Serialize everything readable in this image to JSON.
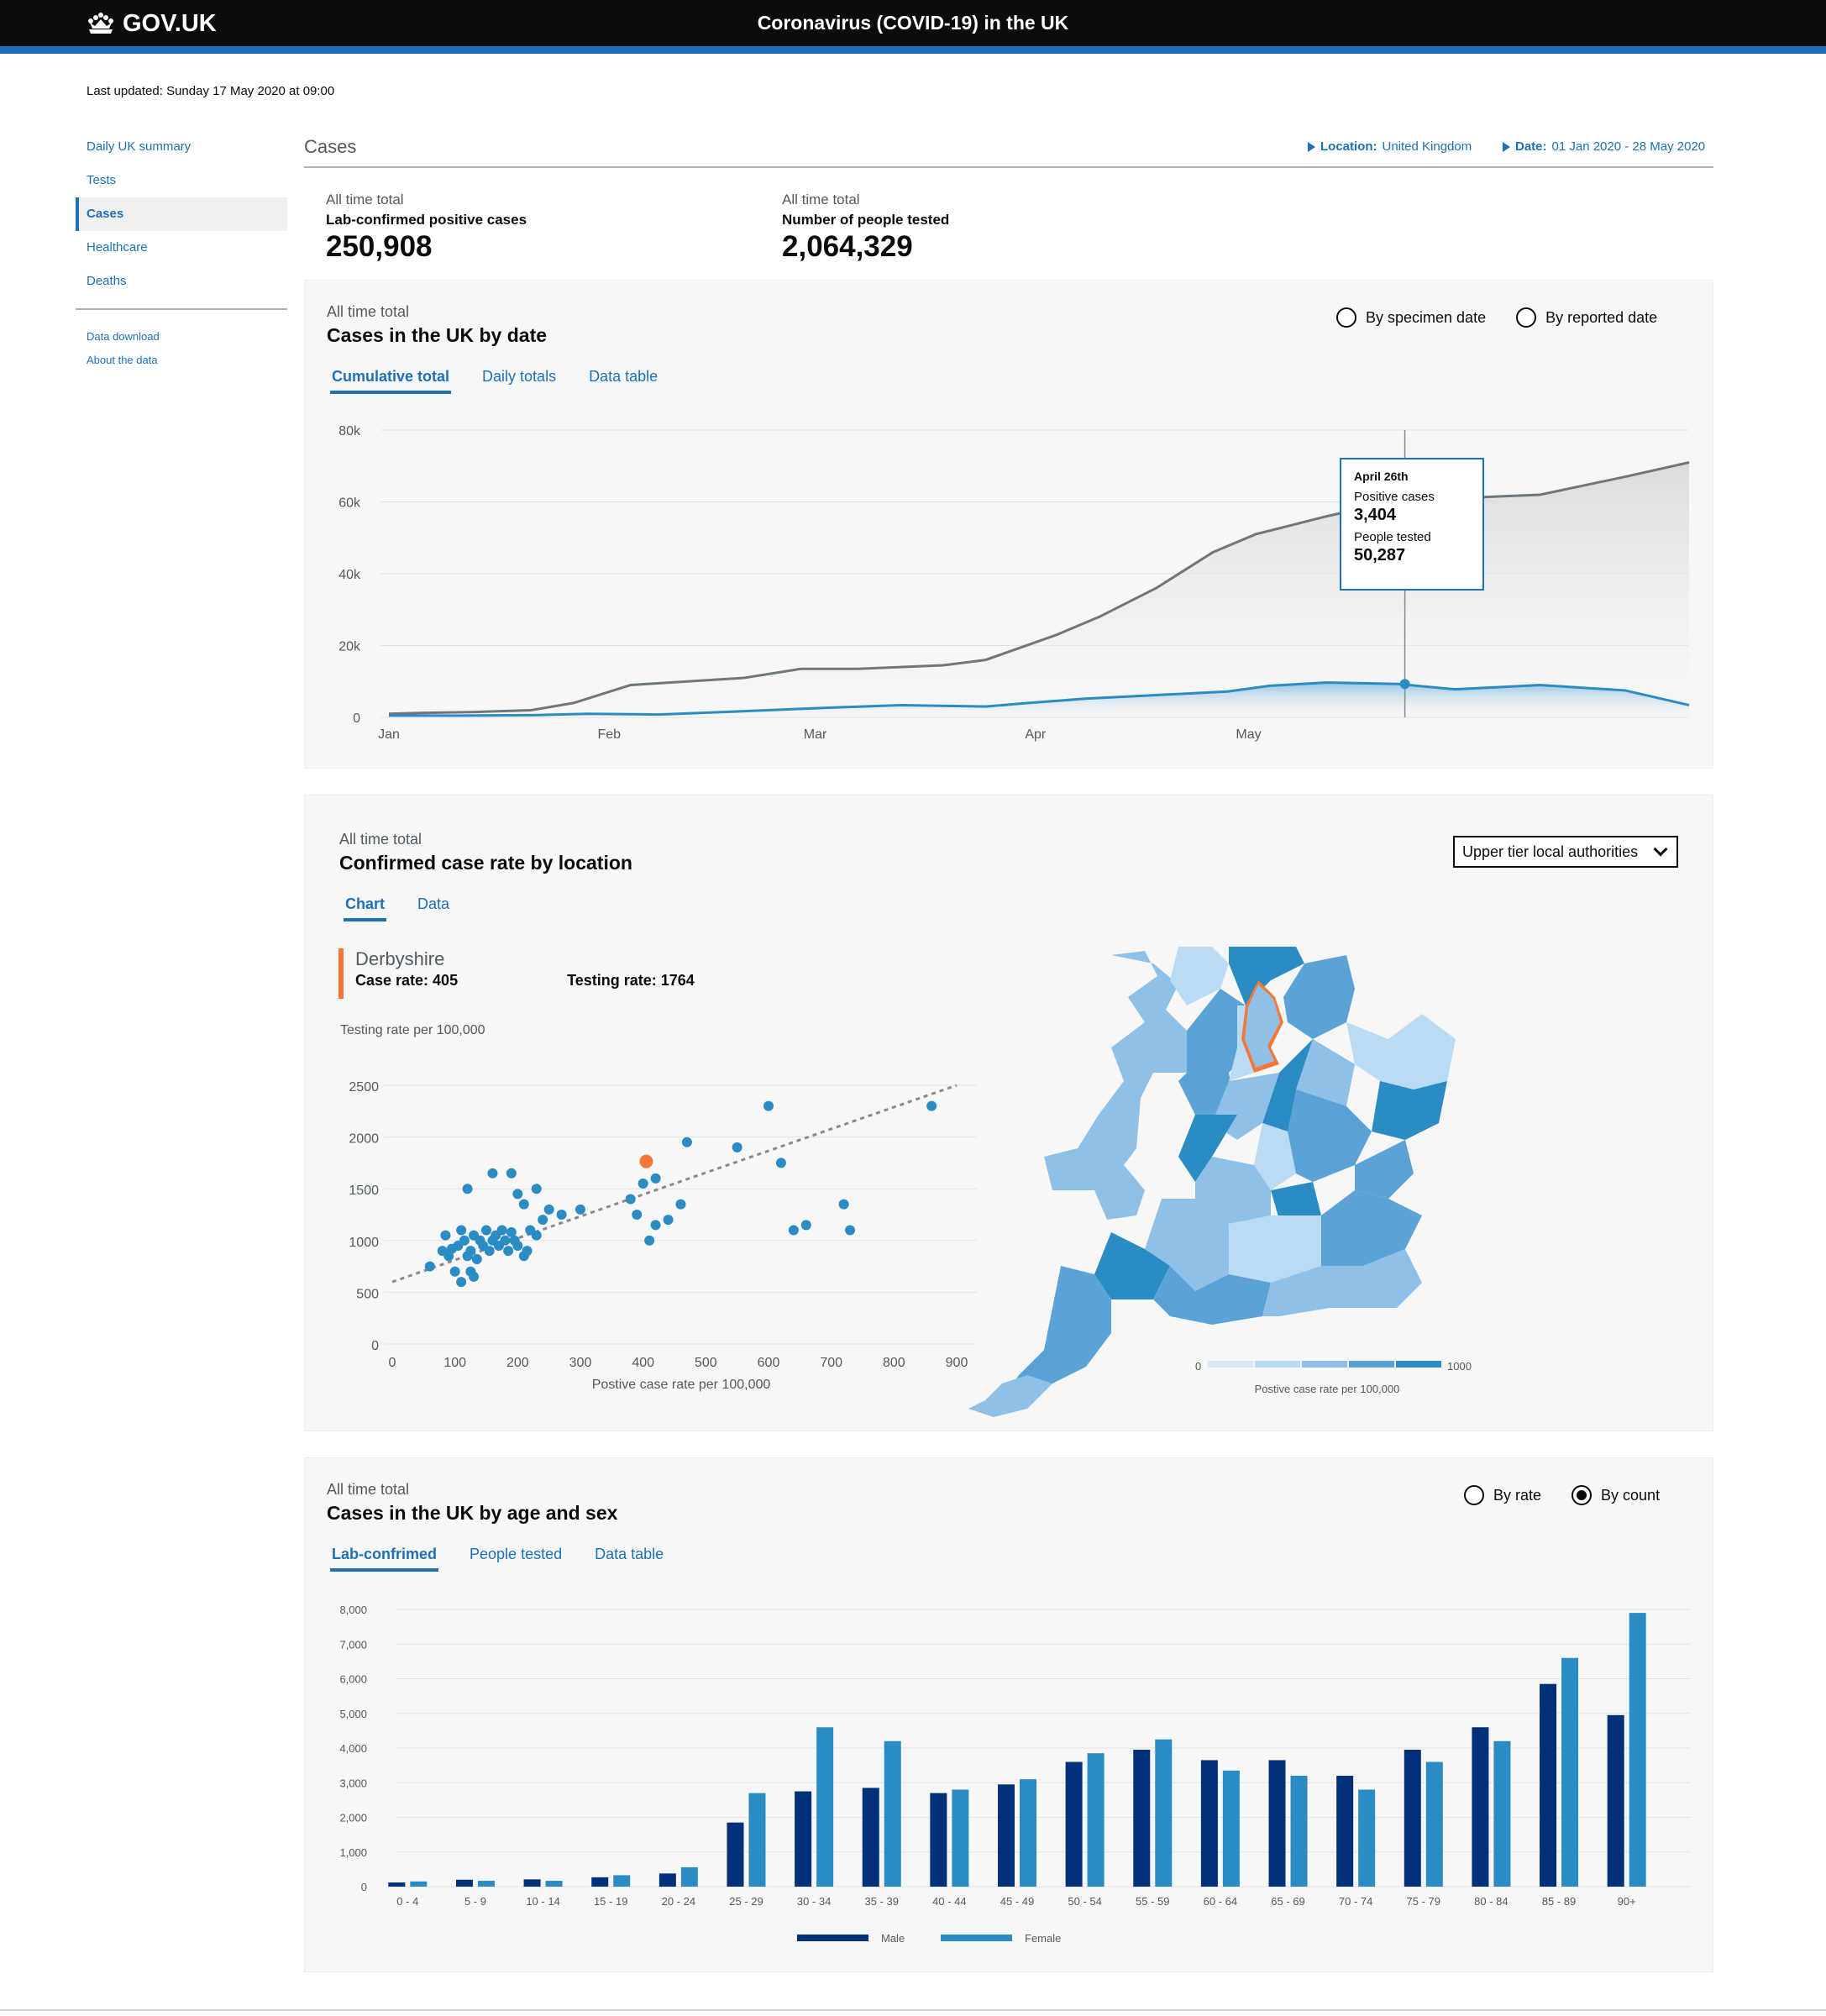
{
  "header": {
    "logo_text": "GOV.UK",
    "title": "Coronavirus (COVID-19) in the UK"
  },
  "last_updated": "Last updated: Sunday 17 May 2020 at 09:00",
  "sidebar": {
    "items": [
      {
        "label": "Daily UK summary"
      },
      {
        "label": "Tests"
      },
      {
        "label": "Cases",
        "active": true
      },
      {
        "label": "Healthcare"
      },
      {
        "label": "Deaths"
      }
    ],
    "sub_items": [
      {
        "label": "Data download"
      },
      {
        "label": "About the data"
      }
    ]
  },
  "section": {
    "title": "Cases",
    "location_label": "Location:",
    "location_value": "United Kingdom",
    "date_label": "Date:",
    "date_value": "01 Jan 2020 - 28 May 2020"
  },
  "headlines": [
    {
      "caption": "All time total",
      "label": "Lab-confirmed positive cases",
      "value": "250,908"
    },
    {
      "caption": "All time total",
      "label": "Number of people tested",
      "value": "2,064,329"
    }
  ],
  "panel1": {
    "caption": "All time total",
    "title": "Cases in the UK by date",
    "tabs": [
      {
        "label": "Cumulative total"
      },
      {
        "label": "Daily totals"
      },
      {
        "label": "Data table"
      }
    ],
    "radios": [
      {
        "label": "By specimen date"
      },
      {
        "label": "By reported date"
      }
    ],
    "tooltip": {
      "date": "April 26th",
      "label1": "Positive cases",
      "value1": "3,404",
      "label2": "People tested",
      "value2": "50,287"
    }
  },
  "panel2": {
    "caption": "All time total",
    "title": "Confirmed case rate by location",
    "tabs": [
      {
        "label": "Chart"
      },
      {
        "label": "Data"
      }
    ],
    "select_value": "Upper tier local authorities",
    "location": {
      "name": "Derbyshire",
      "case_rate": "Case rate: 405",
      "testing_rate": "Testing rate: 1764"
    },
    "map_legend": {
      "min": "0",
      "max": "1000",
      "label": "Postive case rate per 100,000"
    }
  },
  "panel3": {
    "caption": "All time total",
    "title": "Cases in the UK by age and sex",
    "tabs": [
      {
        "label": "Lab-confrimed"
      },
      {
        "label": "People tested"
      },
      {
        "label": "Data table"
      }
    ],
    "radios": [
      {
        "label": "By rate"
      },
      {
        "label": "By count"
      }
    ]
  },
  "colors": {
    "brand_blue": "#1d70b8",
    "dark_navy": "#003078",
    "light_blue": "#2b8cc4",
    "highlight": "#f47738",
    "grey_line": "#6f777b"
  },
  "chart_data": [
    {
      "type": "line",
      "x": [
        "Jan",
        "Feb",
        "Mar",
        "Apr",
        "May"
      ],
      "ylim": [
        0,
        80000
      ],
      "y_ticks": [
        "0",
        "20k",
        "40k",
        "60k",
        "80k"
      ],
      "series": [
        {
          "name": "People tested",
          "points": [
            [
              0,
              1000
            ],
            [
              6,
              1300
            ],
            [
              12,
              1500
            ],
            [
              20,
              2000
            ],
            [
              26,
              4000
            ],
            [
              34,
              9000
            ],
            [
              50,
              11000
            ],
            [
              58,
              13500
            ],
            [
              66,
              13500
            ],
            [
              72,
              14000
            ],
            [
              78,
              14500
            ],
            [
              84,
              16000
            ],
            [
              94,
              23000
            ],
            [
              100,
              28000
            ],
            [
              108,
              36000
            ],
            [
              116,
              46000
            ],
            [
              122,
              51000
            ],
            [
              132,
              56000
            ],
            [
              141,
              60000
            ],
            [
              150,
              61000
            ],
            [
              162,
              62000
            ],
            [
              174,
              67000
            ],
            [
              183,
              71000
            ]
          ]
        },
        {
          "name": "Positive cases",
          "points": [
            [
              0,
              500
            ],
            [
              10,
              500
            ],
            [
              20,
              600
            ],
            [
              28,
              1000
            ],
            [
              38,
              800
            ],
            [
              46,
              1400
            ],
            [
              62,
              2700
            ],
            [
              72,
              3400
            ],
            [
              84,
              3000
            ],
            [
              90,
              4000
            ],
            [
              98,
              5200
            ],
            [
              108,
              6200
            ],
            [
              118,
              7200
            ],
            [
              124,
              8800
            ],
            [
              132,
              9700
            ],
            [
              142,
              9300
            ],
            [
              150,
              7800
            ],
            [
              156,
              8400
            ],
            [
              162,
              9000
            ],
            [
              174,
              7500
            ],
            [
              183,
              3400
            ]
          ]
        }
      ]
    },
    {
      "type": "scatter",
      "xlabel": "Postive case rate per 100,000",
      "ylabel": "Testing rate per 100,000",
      "xlim": [
        0,
        900
      ],
      "ylim": [
        0,
        2500
      ],
      "x_ticks": [
        0,
        100,
        200,
        300,
        400,
        500,
        600,
        700,
        800,
        900
      ],
      "y_ticks": [
        0,
        500,
        1000,
        1500,
        2000,
        2500
      ],
      "highlight": {
        "x": 405,
        "y": 1764
      },
      "trend": [
        [
          0,
          600
        ],
        [
          900,
          2500
        ]
      ],
      "points": [
        [
          60,
          750
        ],
        [
          80,
          900
        ],
        [
          85,
          1050
        ],
        [
          90,
          850
        ],
        [
          95,
          920
        ],
        [
          100,
          700
        ],
        [
          105,
          950
        ],
        [
          110,
          1100
        ],
        [
          115,
          1000
        ],
        [
          120,
          850
        ],
        [
          125,
          900
        ],
        [
          130,
          1050
        ],
        [
          135,
          820
        ],
        [
          140,
          1000
        ],
        [
          145,
          950
        ],
        [
          150,
          1100
        ],
        [
          155,
          900
        ],
        [
          160,
          1000
        ],
        [
          165,
          1050
        ],
        [
          170,
          950
        ],
        [
          175,
          1100
        ],
        [
          180,
          1000
        ],
        [
          185,
          900
        ],
        [
          190,
          1080
        ],
        [
          195,
          1000
        ],
        [
          200,
          950
        ],
        [
          210,
          850
        ],
        [
          215,
          900
        ],
        [
          220,
          1100
        ],
        [
          230,
          1050
        ],
        [
          130,
          650
        ],
        [
          125,
          700
        ],
        [
          110,
          600
        ],
        [
          120,
          1500
        ],
        [
          160,
          1650
        ],
        [
          190,
          1650
        ],
        [
          200,
          1450
        ],
        [
          210,
          1350
        ],
        [
          230,
          1500
        ],
        [
          240,
          1200
        ],
        [
          250,
          1300
        ],
        [
          270,
          1250
        ],
        [
          300,
          1300
        ],
        [
          380,
          1400
        ],
        [
          400,
          1550
        ],
        [
          420,
          1600
        ],
        [
          460,
          1350
        ],
        [
          470,
          1950
        ],
        [
          410,
          1000
        ],
        [
          420,
          1150
        ],
        [
          440,
          1200
        ],
        [
          550,
          1900
        ],
        [
          620,
          1750
        ],
        [
          640,
          1100
        ],
        [
          660,
          1150
        ],
        [
          720,
          1350
        ],
        [
          730,
          1100
        ],
        [
          600,
          2300
        ],
        [
          860,
          2300
        ],
        [
          390,
          1250
        ]
      ]
    },
    {
      "type": "bar",
      "categories": [
        "0 - 4",
        "5 - 9",
        "10 - 14",
        "15 - 19",
        "20 - 24",
        "25 - 29",
        "30 - 34",
        "35 - 39",
        "40 - 44",
        "45 - 49",
        "50 - 54",
        "55 - 59",
        "60 - 64",
        "65 - 69",
        "70 - 74",
        "75 - 79",
        "80 - 84",
        "85 - 89",
        "90+"
      ],
      "ylim": [
        0,
        8000
      ],
      "y_ticks": [
        "0",
        "1,000",
        "2,000",
        "3,000",
        "4,000",
        "5,000",
        "6,000",
        "7,000",
        "8,000"
      ],
      "series": [
        {
          "name": "Male",
          "values": [
            120,
            200,
            210,
            270,
            380,
            1850,
            2750,
            2850,
            2700,
            2950,
            3600,
            3950,
            3650,
            3650,
            3200,
            3950,
            4600,
            5850,
            4950
          ]
        },
        {
          "name": "Female",
          "values": [
            150,
            170,
            170,
            330,
            560,
            2700,
            4600,
            4200,
            2800,
            3100,
            3850,
            4250,
            3350,
            3200,
            2800,
            3600,
            4200,
            6600,
            7900
          ]
        }
      ]
    }
  ]
}
